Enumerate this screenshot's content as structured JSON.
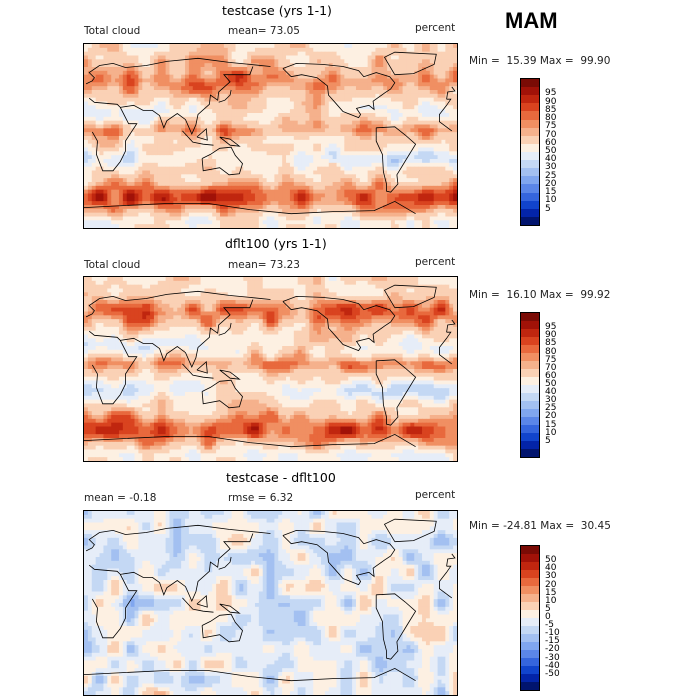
{
  "season": "MAM",
  "panels": [
    {
      "title": "testcase (yrs 1-1)",
      "left_label": "Total cloud",
      "mean_label": "mean=  73.05",
      "unit": "percent",
      "minmax": "Min =  15.39 Max =  99.90",
      "field": "abs_a",
      "colorbar": {
        "colors": [
          "#7a0b05",
          "#a11208",
          "#c0260f",
          "#d9431f",
          "#e8693d",
          "#f08f62",
          "#f5b18c",
          "#fad1b5",
          "#fdf0e2",
          "#e6edf8",
          "#c4d8f4",
          "#a3c0f1",
          "#80a6ef",
          "#5b86e8",
          "#3565dd",
          "#1144cc",
          "#0324a8",
          "#01146e"
        ],
        "labels": [
          "95",
          "90",
          "85",
          "80",
          "75",
          "70",
          "60",
          "50",
          "40",
          "30",
          "25",
          "20",
          "15",
          "10",
          "5"
        ]
      }
    },
    {
      "title": "dflt100 (yrs 1-1)",
      "left_label": "Total cloud",
      "mean_label": "mean=  73.23",
      "unit": "percent",
      "minmax": "Min =  16.10 Max =  99.92",
      "field": "abs_b",
      "colorbar": {
        "colors": [
          "#7a0b05",
          "#a11208",
          "#c0260f",
          "#d9431f",
          "#e8693d",
          "#f08f62",
          "#f5b18c",
          "#fad1b5",
          "#fdf0e2",
          "#e6edf8",
          "#c4d8f4",
          "#a3c0f1",
          "#80a6ef",
          "#5b86e8",
          "#3565dd",
          "#1144cc",
          "#0324a8",
          "#01146e"
        ],
        "labels": [
          "95",
          "90",
          "85",
          "80",
          "75",
          "70",
          "60",
          "50",
          "40",
          "30",
          "25",
          "20",
          "15",
          "10",
          "5"
        ]
      }
    },
    {
      "title": "testcase - dflt100",
      "left_label": "mean =  -0.18",
      "mean_label": "rmse =   6.32",
      "unit": "percent",
      "minmax": "Min = -24.81 Max =  30.45",
      "field": "diff",
      "colorbar": {
        "colors": [
          "#7a0b05",
          "#a11208",
          "#c0260f",
          "#d9431f",
          "#e8693d",
          "#f08f62",
          "#f5b18c",
          "#fad1b5",
          "#fdf0e2",
          "#e6edf8",
          "#c4d8f4",
          "#a3c0f1",
          "#80a6ef",
          "#5b86e8",
          "#3565dd",
          "#1144cc",
          "#0324a8",
          "#01146e"
        ],
        "labels": [
          "50",
          "40",
          "30",
          "20",
          "15",
          "10",
          "5",
          "0",
          "-5",
          "-10",
          "-15",
          "-20",
          "-30",
          "-40",
          "-50"
        ]
      }
    }
  ]
}
